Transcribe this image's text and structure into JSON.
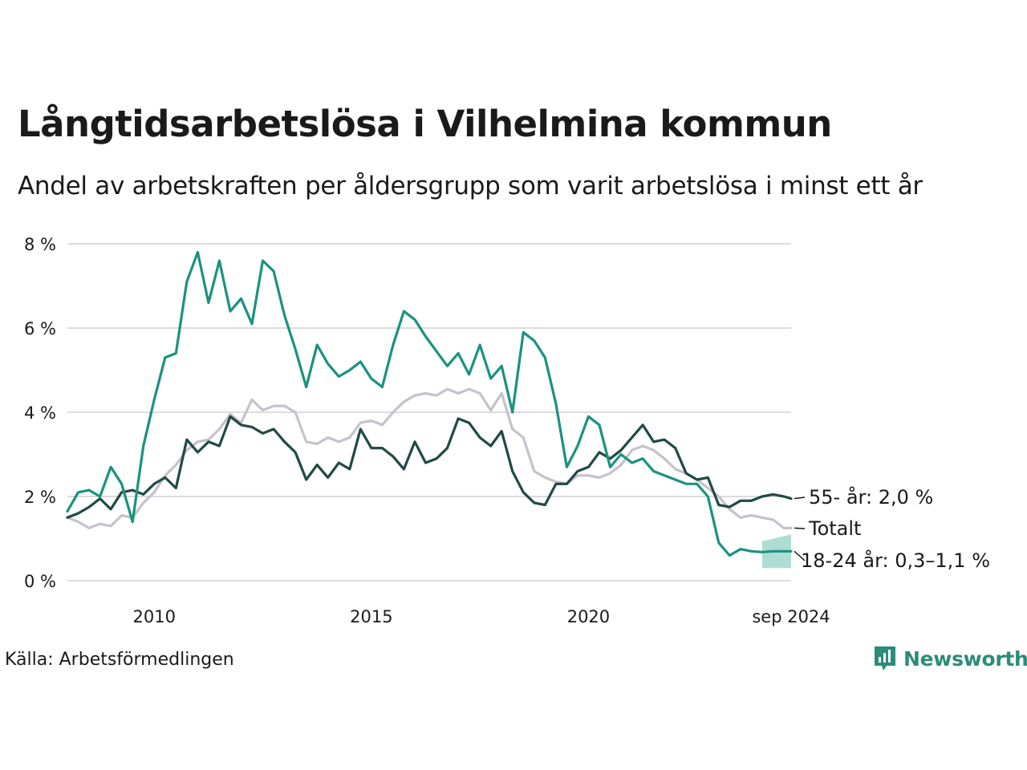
{
  "title": "Långtidsarbetslösa i Vilhelmina kommun",
  "subtitle": "Andel av arbetskraften per åldersgrupp som varit arbetslösa i minst ett år",
  "source": "Källa: Arbetsförmedlingen",
  "brand": {
    "name": "Newsworthy",
    "icon": "newsworthy-logo-icon",
    "color": "#2b8c79"
  },
  "chart_data": {
    "type": "line",
    "x_start": "2008-01",
    "x_end": "2024-09",
    "ylim": [
      0,
      8
    ],
    "y_ticks": [
      0,
      2,
      4,
      6,
      8
    ],
    "y_tick_labels": [
      "0 %",
      "2 %",
      "4 %",
      "6 %",
      "8 %"
    ],
    "x_ticks": [
      "2010-01",
      "2015-01",
      "2020-01",
      "2024-09"
    ],
    "x_tick_labels": [
      "2010",
      "2015",
      "2020",
      "sep 2024"
    ],
    "grid": true,
    "series": [
      {
        "name": "Totalt",
        "label": "Totalt",
        "color": "#c6c1cc",
        "points": [
          [
            "2008-01",
            1.5
          ],
          [
            "2008-04",
            1.4
          ],
          [
            "2008-07",
            1.25
          ],
          [
            "2008-10",
            1.35
          ],
          [
            "2009-01",
            1.3
          ],
          [
            "2009-04",
            1.55
          ],
          [
            "2009-07",
            1.5
          ],
          [
            "2009-10",
            1.85
          ],
          [
            "2010-01",
            2.1
          ],
          [
            "2010-04",
            2.5
          ],
          [
            "2010-07",
            2.75
          ],
          [
            "2010-10",
            3.1
          ],
          [
            "2011-01",
            3.3
          ],
          [
            "2011-04",
            3.35
          ],
          [
            "2011-07",
            3.6
          ],
          [
            "2011-10",
            3.95
          ],
          [
            "2012-01",
            3.75
          ],
          [
            "2012-04",
            4.3
          ],
          [
            "2012-07",
            4.05
          ],
          [
            "2012-10",
            4.15
          ],
          [
            "2013-01",
            4.15
          ],
          [
            "2013-04",
            4.0
          ],
          [
            "2013-07",
            3.3
          ],
          [
            "2013-10",
            3.25
          ],
          [
            "2014-01",
            3.4
          ],
          [
            "2014-04",
            3.3
          ],
          [
            "2014-07",
            3.4
          ],
          [
            "2014-10",
            3.75
          ],
          [
            "2015-01",
            3.8
          ],
          [
            "2015-04",
            3.7
          ],
          [
            "2015-07",
            4.0
          ],
          [
            "2015-10",
            4.25
          ],
          [
            "2016-01",
            4.4
          ],
          [
            "2016-04",
            4.45
          ],
          [
            "2016-07",
            4.4
          ],
          [
            "2016-10",
            4.55
          ],
          [
            "2017-01",
            4.45
          ],
          [
            "2017-04",
            4.55
          ],
          [
            "2017-07",
            4.45
          ],
          [
            "2017-10",
            4.05
          ],
          [
            "2018-01",
            4.45
          ],
          [
            "2018-04",
            3.6
          ],
          [
            "2018-07",
            3.4
          ],
          [
            "2018-10",
            2.6
          ],
          [
            "2019-01",
            2.45
          ],
          [
            "2019-04",
            2.35
          ],
          [
            "2019-07",
            2.3
          ],
          [
            "2019-10",
            2.5
          ],
          [
            "2020-01",
            2.5
          ],
          [
            "2020-04",
            2.45
          ],
          [
            "2020-07",
            2.55
          ],
          [
            "2020-10",
            2.75
          ],
          [
            "2021-01",
            3.1
          ],
          [
            "2021-04",
            3.2
          ],
          [
            "2021-07",
            3.1
          ],
          [
            "2021-10",
            2.9
          ],
          [
            "2022-01",
            2.65
          ],
          [
            "2022-04",
            2.55
          ],
          [
            "2022-07",
            2.4
          ],
          [
            "2022-10",
            2.2
          ],
          [
            "2023-01",
            2.0
          ],
          [
            "2023-04",
            1.7
          ],
          [
            "2023-07",
            1.5
          ],
          [
            "2023-10",
            1.55
          ],
          [
            "2024-01",
            1.5
          ],
          [
            "2024-04",
            1.45
          ],
          [
            "2024-07",
            1.25
          ],
          [
            "2024-09",
            1.25
          ]
        ]
      },
      {
        "name": "55- år",
        "label": "55- år: 2,0 %",
        "color": "#1f4a44",
        "points": [
          [
            "2008-01",
            1.5
          ],
          [
            "2008-04",
            1.6
          ],
          [
            "2008-07",
            1.75
          ],
          [
            "2008-10",
            1.95
          ],
          [
            "2009-01",
            1.7
          ],
          [
            "2009-04",
            2.1
          ],
          [
            "2009-07",
            2.15
          ],
          [
            "2009-10",
            2.05
          ],
          [
            "2010-01",
            2.3
          ],
          [
            "2010-04",
            2.45
          ],
          [
            "2010-07",
            2.2
          ],
          [
            "2010-10",
            3.35
          ],
          [
            "2011-01",
            3.05
          ],
          [
            "2011-04",
            3.3
          ],
          [
            "2011-07",
            3.2
          ],
          [
            "2011-10",
            3.9
          ],
          [
            "2012-01",
            3.7
          ],
          [
            "2012-04",
            3.65
          ],
          [
            "2012-07",
            3.5
          ],
          [
            "2012-10",
            3.6
          ],
          [
            "2013-01",
            3.3
          ],
          [
            "2013-04",
            3.05
          ],
          [
            "2013-07",
            2.4
          ],
          [
            "2013-10",
            2.75
          ],
          [
            "2014-01",
            2.45
          ],
          [
            "2014-04",
            2.8
          ],
          [
            "2014-07",
            2.65
          ],
          [
            "2014-10",
            3.6
          ],
          [
            "2015-01",
            3.15
          ],
          [
            "2015-04",
            3.15
          ],
          [
            "2015-07",
            2.95
          ],
          [
            "2015-10",
            2.65
          ],
          [
            "2016-01",
            3.3
          ],
          [
            "2016-04",
            2.8
          ],
          [
            "2016-07",
            2.9
          ],
          [
            "2016-10",
            3.15
          ],
          [
            "2017-01",
            3.85
          ],
          [
            "2017-04",
            3.75
          ],
          [
            "2017-07",
            3.4
          ],
          [
            "2017-10",
            3.2
          ],
          [
            "2018-01",
            3.55
          ],
          [
            "2018-04",
            2.6
          ],
          [
            "2018-07",
            2.1
          ],
          [
            "2018-10",
            1.85
          ],
          [
            "2019-01",
            1.8
          ],
          [
            "2019-04",
            2.3
          ],
          [
            "2019-07",
            2.3
          ],
          [
            "2019-10",
            2.6
          ],
          [
            "2020-01",
            2.7
          ],
          [
            "2020-04",
            3.05
          ],
          [
            "2020-07",
            2.9
          ],
          [
            "2020-10",
            3.1
          ],
          [
            "2021-01",
            3.4
          ],
          [
            "2021-04",
            3.7
          ],
          [
            "2021-07",
            3.3
          ],
          [
            "2021-10",
            3.35
          ],
          [
            "2022-01",
            3.15
          ],
          [
            "2022-04",
            2.55
          ],
          [
            "2022-07",
            2.4
          ],
          [
            "2022-10",
            2.45
          ],
          [
            "2023-01",
            1.8
          ],
          [
            "2023-04",
            1.75
          ],
          [
            "2023-07",
            1.9
          ],
          [
            "2023-10",
            1.9
          ],
          [
            "2024-01",
            2.0
          ],
          [
            "2024-04",
            2.05
          ],
          [
            "2024-07",
            2.0
          ],
          [
            "2024-09",
            1.95
          ]
        ]
      },
      {
        "name": "18-24 år",
        "label": "18-24 år: 0,3–1,1 %",
        "color": "#1a9280",
        "band_color": "#a6d8ce",
        "band_start": "2024-01",
        "band": [
          0.3,
          1.1
        ],
        "points": [
          [
            "2008-01",
            1.65
          ],
          [
            "2008-04",
            2.1
          ],
          [
            "2008-07",
            2.15
          ],
          [
            "2008-10",
            2.0
          ],
          [
            "2009-01",
            2.7
          ],
          [
            "2009-04",
            2.3
          ],
          [
            "2009-07",
            1.4
          ],
          [
            "2009-10",
            3.2
          ],
          [
            "2010-01",
            4.3
          ],
          [
            "2010-04",
            5.3
          ],
          [
            "2010-07",
            5.4
          ],
          [
            "2010-10",
            7.1
          ],
          [
            "2011-01",
            7.8
          ],
          [
            "2011-04",
            6.6
          ],
          [
            "2011-07",
            7.6
          ],
          [
            "2011-10",
            6.4
          ],
          [
            "2012-01",
            6.7
          ],
          [
            "2012-04",
            6.1
          ],
          [
            "2012-07",
            7.6
          ],
          [
            "2012-10",
            7.35
          ],
          [
            "2013-01",
            6.3
          ],
          [
            "2013-04",
            5.5
          ],
          [
            "2013-07",
            4.6
          ],
          [
            "2013-10",
            5.6
          ],
          [
            "2014-01",
            5.15
          ],
          [
            "2014-04",
            4.85
          ],
          [
            "2014-07",
            5.0
          ],
          [
            "2014-10",
            5.2
          ],
          [
            "2015-01",
            4.8
          ],
          [
            "2015-04",
            4.6
          ],
          [
            "2015-07",
            5.6
          ],
          [
            "2015-10",
            6.4
          ],
          [
            "2016-01",
            6.2
          ],
          [
            "2016-04",
            5.8
          ],
          [
            "2016-07",
            5.45
          ],
          [
            "2016-10",
            5.1
          ],
          [
            "2017-01",
            5.4
          ],
          [
            "2017-04",
            4.9
          ],
          [
            "2017-07",
            5.6
          ],
          [
            "2017-10",
            4.8
          ],
          [
            "2018-01",
            5.1
          ],
          [
            "2018-04",
            4.0
          ],
          [
            "2018-07",
            5.9
          ],
          [
            "2018-10",
            5.7
          ],
          [
            "2019-01",
            5.3
          ],
          [
            "2019-04",
            4.2
          ],
          [
            "2019-07",
            2.7
          ],
          [
            "2019-10",
            3.2
          ],
          [
            "2020-01",
            3.9
          ],
          [
            "2020-04",
            3.7
          ],
          [
            "2020-07",
            2.7
          ],
          [
            "2020-10",
            3.0
          ],
          [
            "2021-01",
            2.8
          ],
          [
            "2021-04",
            2.9
          ],
          [
            "2021-07",
            2.6
          ],
          [
            "2021-10",
            2.5
          ],
          [
            "2022-01",
            2.4
          ],
          [
            "2022-04",
            2.3
          ],
          [
            "2022-07",
            2.3
          ],
          [
            "2022-10",
            2.0
          ],
          [
            "2023-01",
            0.9
          ],
          [
            "2023-04",
            0.6
          ],
          [
            "2023-07",
            0.75
          ],
          [
            "2023-10",
            0.7
          ],
          [
            "2024-01",
            0.68
          ],
          [
            "2024-04",
            0.7
          ],
          [
            "2024-07",
            0.7
          ],
          [
            "2024-09",
            0.7
          ]
        ]
      }
    ]
  }
}
